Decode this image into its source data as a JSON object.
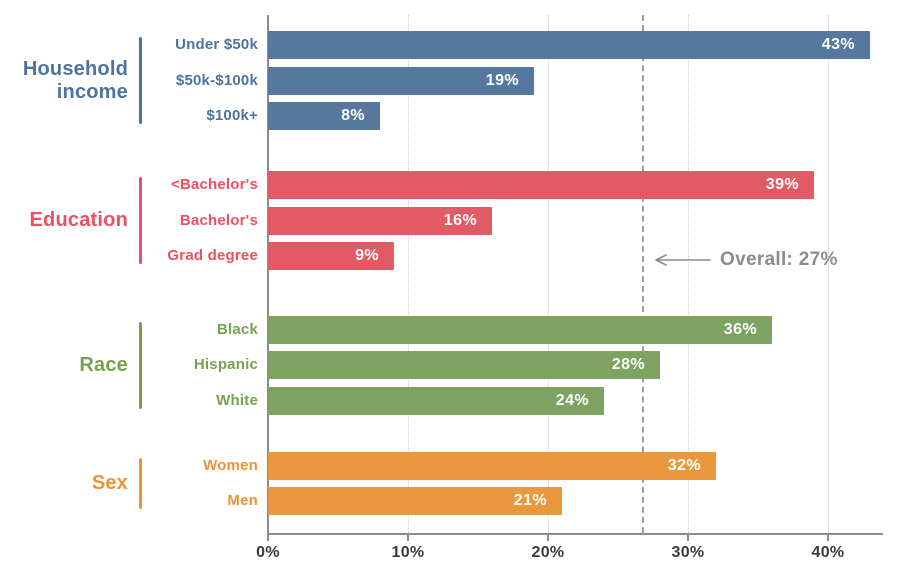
{
  "chart_data": {
    "type": "bar",
    "orientation": "horizontal",
    "title": "",
    "xlabel": "",
    "ylabel": "",
    "value_unit": "%",
    "x_axis": {
      "min": 0,
      "max": 43.7,
      "grid": "dotted-vertical",
      "ticks": [
        {
          "value": 0,
          "label": "0%"
        },
        {
          "value": 10,
          "label": "10%"
        },
        {
          "value": 20,
          "label": "20%"
        },
        {
          "value": 30,
          "label": "30%"
        },
        {
          "value": 40,
          "label": "40%"
        }
      ]
    },
    "overall_line": {
      "value": 27,
      "label": "Overall: 27%",
      "style": "dashed"
    },
    "groups": [
      {
        "label": "Household income",
        "label_lines": [
          "Household",
          "income"
        ],
        "bar_color": "#56789e",
        "text_color": "#4d74a1",
        "items": [
          {
            "label": "Under $50k",
            "value": 43,
            "display": "43%"
          },
          {
            "label": "$50k-$100k",
            "value": 19,
            "display": "19%"
          },
          {
            "label": "$100k+",
            "value": 8,
            "display": "8%"
          }
        ]
      },
      {
        "label": "Education",
        "label_lines": [
          "Education"
        ],
        "bar_color": "#e25a66",
        "text_color": "#ee5061",
        "items": [
          {
            "label": "<Bachelor's",
            "value": 39,
            "display": "39%"
          },
          {
            "label": "Bachelor's",
            "value": 16,
            "display": "16%"
          },
          {
            "label": "Grad degree",
            "value": 9,
            "display": "9%"
          }
        ]
      },
      {
        "label": "Race",
        "label_lines": [
          "Race"
        ],
        "bar_color": "#7da261",
        "text_color": "#76a24e",
        "items": [
          {
            "label": "Black",
            "value": 36,
            "display": "36%"
          },
          {
            "label": "Hispanic",
            "value": 28,
            "display": "28%"
          },
          {
            "label": "White",
            "value": 24,
            "display": "24%"
          }
        ]
      },
      {
        "label": "Sex",
        "label_lines": [
          "Sex"
        ],
        "bar_color": "#e9983d",
        "text_color": "#ee9333",
        "items": [
          {
            "label": "Women",
            "value": 32,
            "display": "32%"
          },
          {
            "label": "Men",
            "value": 21,
            "display": "21%"
          }
        ]
      }
    ]
  },
  "colors": {
    "background": "#ffffff",
    "axis": "#8c8c8c",
    "gridline": "#cccccc",
    "overall_line": "#9e9e9e",
    "tick_label": "#3a3a3a",
    "bar_value_label": "#ffffff",
    "annotation": "#8c8c8c"
  },
  "icons": {
    "overall_arrow": "left-arrow-icon"
  }
}
